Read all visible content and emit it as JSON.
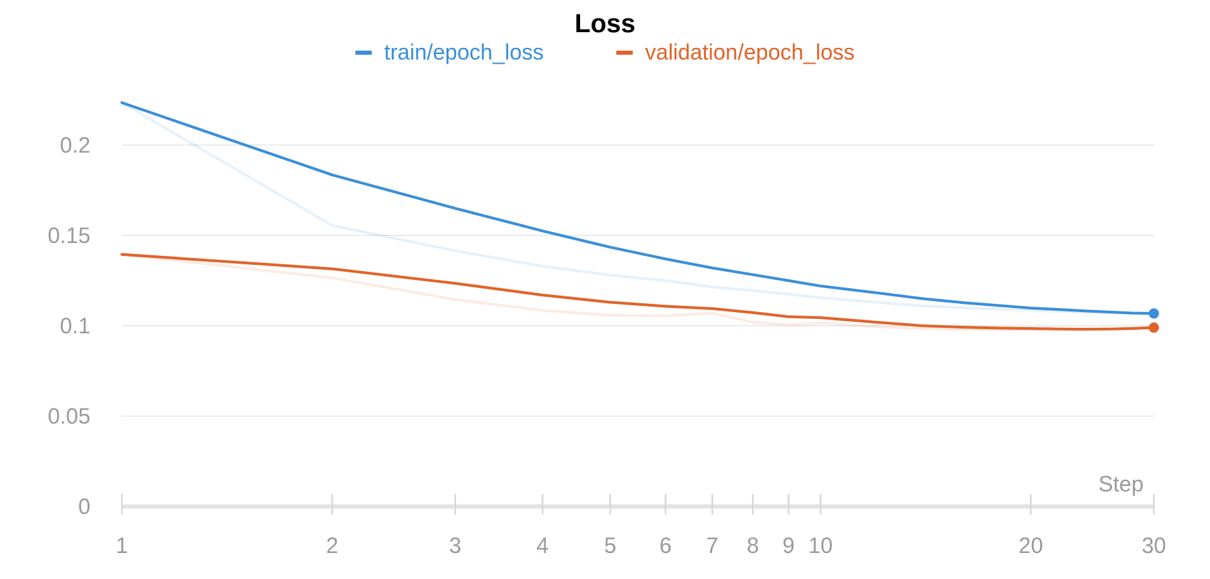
{
  "chart_data": {
    "type": "line",
    "title": "Loss",
    "xlabel": "Step",
    "ylabel": "",
    "xscale": "log",
    "xlim": [
      1,
      30
    ],
    "ylim": [
      0,
      0.23
    ],
    "grid": true,
    "legend_position": "top",
    "x_ticks": [
      1,
      2,
      3,
      4,
      5,
      6,
      7,
      8,
      9,
      10,
      20,
      30
    ],
    "x_tick_labels": [
      "1",
      "2",
      "3",
      "4",
      "5",
      "6",
      "7",
      "8",
      "9",
      "10",
      "20",
      "30"
    ],
    "y_ticks": [
      0,
      0.05,
      0.1,
      0.15,
      0.2
    ],
    "y_tick_labels": [
      "0",
      "0.05",
      "0.1",
      "0.15",
      "0.2"
    ],
    "series": [
      {
        "name": "train/epoch_loss",
        "color": "#3a8fd8",
        "x": [
          1,
          2,
          3,
          4,
          5,
          6,
          7,
          8,
          9,
          10,
          12,
          14,
          16,
          18,
          20,
          22,
          24,
          26,
          28,
          30
        ],
        "y": [
          0.2235,
          0.1835,
          0.165,
          0.1525,
          0.1435,
          0.137,
          0.132,
          0.1283,
          0.125,
          0.122,
          0.1183,
          0.115,
          0.1128,
          0.1112,
          0.1098,
          0.109,
          0.1082,
          0.1076,
          0.107,
          0.1068
        ],
        "raw_y": [
          0.2235,
          0.1555,
          0.1415,
          0.133,
          0.128,
          0.125,
          0.1215,
          0.1195,
          0.1175,
          0.1155,
          0.113,
          0.111,
          0.11,
          0.1092,
          0.1085,
          0.108,
          0.1076,
          0.1072,
          0.107,
          0.1068
        ]
      },
      {
        "name": "validation/epoch_loss",
        "color": "#e0642a",
        "x": [
          1,
          2,
          3,
          4,
          5,
          6,
          7,
          8,
          9,
          10,
          12,
          14,
          16,
          18,
          20,
          22,
          24,
          26,
          28,
          30
        ],
        "y": [
          0.1395,
          0.1315,
          0.1235,
          0.117,
          0.113,
          0.1108,
          0.1095,
          0.1073,
          0.105,
          0.1045,
          0.102,
          0.1,
          0.0992,
          0.0987,
          0.0985,
          0.0982,
          0.0981,
          0.0982,
          0.0985,
          0.099
        ],
        "raw_y": [
          0.1395,
          0.1265,
          0.1145,
          0.1085,
          0.1058,
          0.1055,
          0.107,
          0.102,
          0.1005,
          0.1015,
          0.0995,
          0.0985,
          0.098,
          0.0978,
          0.0977,
          0.0978,
          0.098,
          0.0983,
          0.0986,
          0.099
        ]
      }
    ]
  }
}
